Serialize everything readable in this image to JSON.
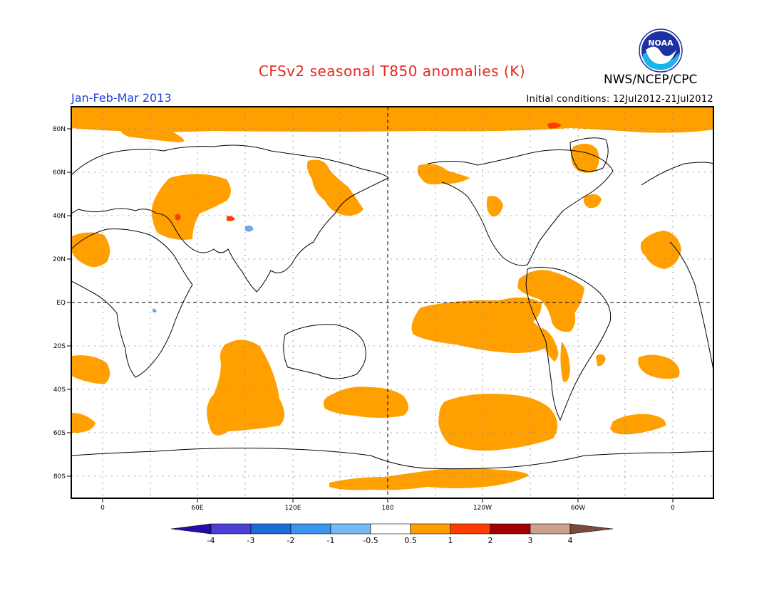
{
  "header": {
    "title": "CFSv2 seasonal T850 anomalies (K)",
    "agency": "NWS/NCEP/CPC",
    "season": "Jan-Feb-Mar 2013",
    "initial_conditions": "Initial conditions: 12Jul2012-21Jul2012",
    "logo_text": "NOAA"
  },
  "colors": {
    "title": "#e8261f",
    "season": "#1f3fd8",
    "warm_anomaly": "#ffa000",
    "strong_warm": "#ff3c00",
    "cool_anomaly": "#6fa8ee"
  },
  "map": {
    "lat_labels": [
      "80N",
      "60N",
      "40N",
      "20N",
      "EQ",
      "20S",
      "40S",
      "60S",
      "80S"
    ],
    "lon_labels": [
      "0",
      "60E",
      "120E",
      "180",
      "120W",
      "60W",
      "0"
    ]
  },
  "colorbar": {
    "labels": [
      "-4",
      "-3",
      "-2",
      "-1",
      "-0.5",
      "0.5",
      "1",
      "2",
      "3",
      "4"
    ],
    "colors": [
      "#2b0ba8",
      "#4c3fd3",
      "#1a6cd9",
      "#3c96f0",
      "#78b9f2",
      "#ffffff",
      "#ffa000",
      "#ff3c00",
      "#a50000",
      "#cca08c",
      "#7a4a3a"
    ]
  }
}
